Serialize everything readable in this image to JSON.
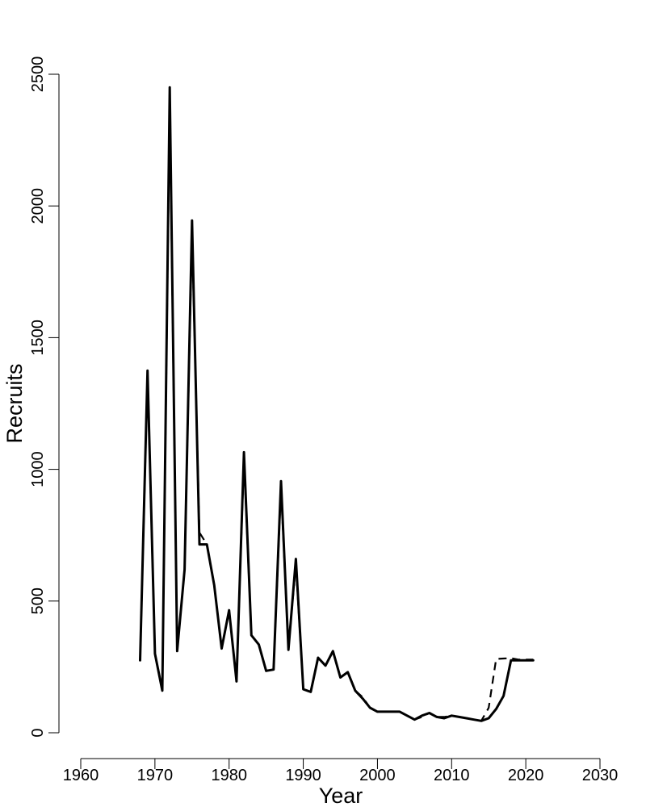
{
  "chart_data": {
    "type": "line",
    "xlabel": "Year",
    "ylabel": "Recruits",
    "xlim": [
      1960,
      2030
    ],
    "ylim": [
      0,
      2500
    ],
    "x_ticks": [
      1960,
      1970,
      1980,
      1990,
      2000,
      2010,
      2020,
      2030
    ],
    "y_ticks": [
      0,
      500,
      1000,
      1500,
      2000,
      2500
    ],
    "grid": false,
    "legend": "none",
    "series": [
      {
        "style": "dashed",
        "color": "#000000",
        "x": [
          1968,
          1969,
          1970,
          1971,
          1972,
          1973,
          1974,
          1975,
          1976,
          1977,
          1978,
          1979,
          1980,
          1981,
          1982,
          1983,
          1984,
          1985,
          1986,
          1987,
          1988,
          1989,
          1990,
          1991,
          1992,
          1993,
          1994,
          1995,
          1996,
          1997,
          1998,
          1999,
          2000,
          2001,
          2002,
          2003,
          2004,
          2005,
          2006,
          2007,
          2008,
          2009,
          2010,
          2011,
          2012,
          2013,
          2014,
          2015,
          2016,
          2017,
          2018,
          2019,
          2020,
          2021
        ],
        "y": [
          275,
          1350,
          300,
          165,
          2400,
          310,
          620,
          1900,
          760,
          715,
          560,
          320,
          465,
          195,
          1040,
          370,
          335,
          235,
          240,
          930,
          315,
          640,
          165,
          155,
          285,
          255,
          310,
          210,
          230,
          160,
          135,
          95,
          80,
          80,
          80,
          80,
          65,
          50,
          60,
          75,
          60,
          60,
          65,
          60,
          55,
          50,
          45,
          95,
          280,
          282,
          283,
          278,
          278,
          278
        ]
      },
      {
        "style": "solid",
        "color": "#000000",
        "x": [
          1968,
          1969,
          1970,
          1971,
          1972,
          1973,
          1974,
          1975,
          1976,
          1977,
          1978,
          1979,
          1980,
          1981,
          1982,
          1983,
          1984,
          1985,
          1986,
          1987,
          1988,
          1989,
          1990,
          1991,
          1992,
          1993,
          1994,
          1995,
          1996,
          1997,
          1998,
          1999,
          2000,
          2001,
          2002,
          2003,
          2004,
          2005,
          2006,
          2007,
          2008,
          2009,
          2010,
          2011,
          2012,
          2013,
          2014,
          2015,
          2016,
          2017,
          2018,
          2019,
          2020,
          2021
        ],
        "y": [
          275,
          1375,
          300,
          160,
          2450,
          310,
          620,
          1945,
          715,
          715,
          560,
          320,
          465,
          195,
          1065,
          370,
          335,
          235,
          240,
          955,
          315,
          660,
          165,
          155,
          285,
          255,
          310,
          210,
          230,
          160,
          130,
          95,
          80,
          80,
          80,
          80,
          65,
          50,
          65,
          75,
          60,
          55,
          65,
          60,
          55,
          50,
          45,
          55,
          90,
          140,
          275,
          275,
          275,
          275
        ]
      }
    ]
  }
}
